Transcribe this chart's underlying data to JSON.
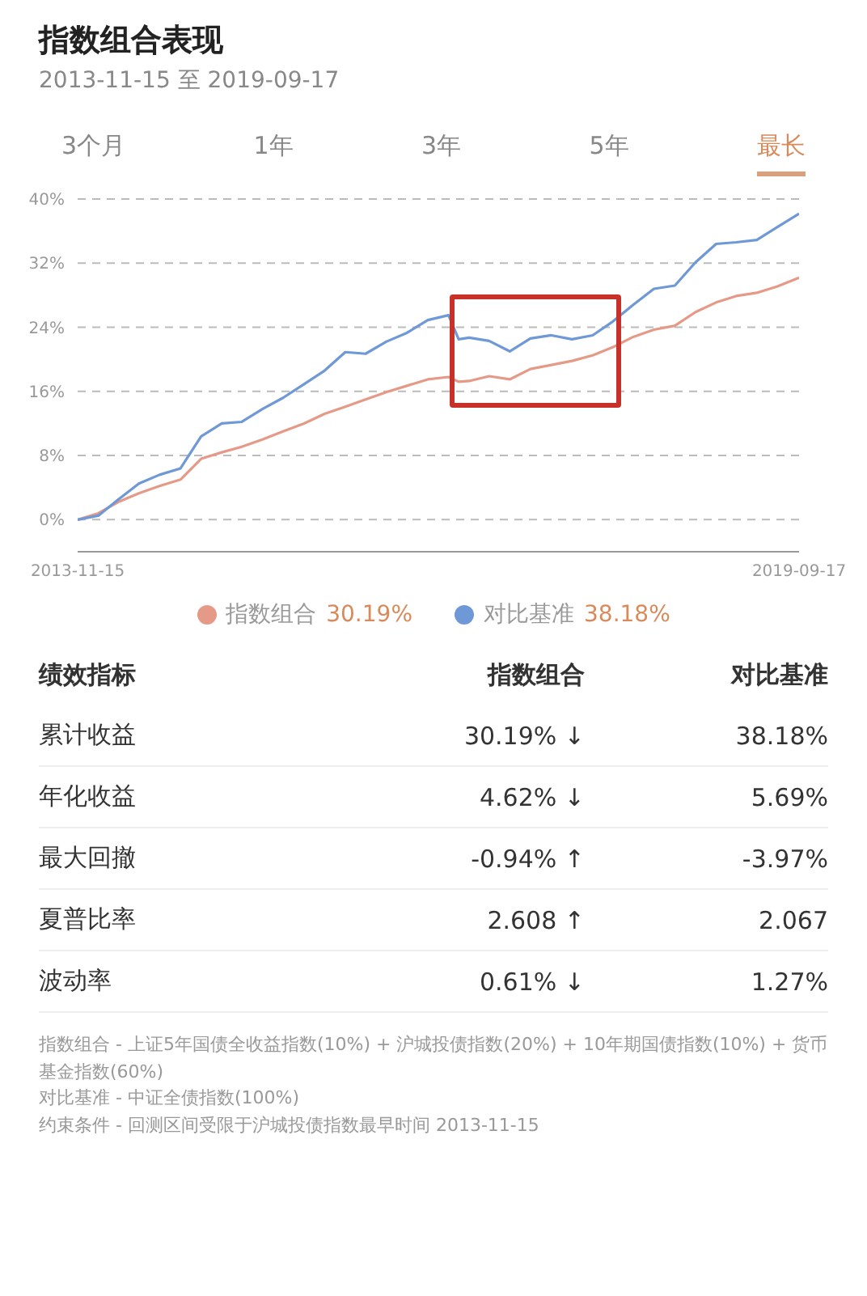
{
  "chart_data": {
    "type": "line",
    "title": "指数组合表现",
    "subtitle": "2013-11-15 至 2019-09-17",
    "x": [
      "2013-11-15",
      "2014-01-15",
      "2014-03-15",
      "2014-05-15",
      "2014-07-15",
      "2014-09-15",
      "2014-11-15",
      "2015-01-15",
      "2015-03-15",
      "2015-05-15",
      "2015-07-15",
      "2015-09-15",
      "2015-11-15",
      "2016-01-15",
      "2016-03-15",
      "2016-05-15",
      "2016-07-15",
      "2016-09-15",
      "2016-11-15",
      "2016-12-15",
      "2017-01-15",
      "2017-03-15",
      "2017-05-15",
      "2017-07-15",
      "2017-09-15",
      "2017-11-15",
      "2018-01-15",
      "2018-03-15",
      "2018-05-15",
      "2018-07-15",
      "2018-09-15",
      "2018-11-15",
      "2019-01-15",
      "2019-03-15",
      "2019-05-15",
      "2019-07-15",
      "2019-09-17"
    ],
    "series": [
      {
        "name": "指数组合",
        "color": "#e59a88",
        "values": [
          0,
          0.8,
          2.2,
          3.3,
          4.2,
          5.0,
          7.6,
          8.4,
          9.1,
          10.0,
          11.0,
          12.0,
          13.2,
          14.1,
          15.0,
          15.9,
          16.7,
          17.5,
          17.8,
          17.2,
          17.3,
          17.9,
          17.5,
          18.8,
          19.3,
          19.8,
          20.5,
          21.5,
          22.8,
          23.7,
          24.2,
          25.9,
          27.1,
          27.9,
          28.3,
          29.1,
          30.19
        ]
      },
      {
        "name": "对比基准",
        "color": "#6e98d6",
        "values": [
          0,
          0.5,
          2.5,
          4.5,
          5.6,
          6.4,
          10.4,
          12.0,
          12.2,
          13.8,
          15.2,
          16.9,
          18.6,
          20.9,
          20.7,
          22.2,
          23.3,
          24.9,
          25.5,
          22.5,
          22.7,
          22.3,
          21.0,
          22.6,
          23.0,
          22.5,
          23.0,
          24.7,
          26.8,
          28.8,
          29.2,
          32.1,
          34.4,
          34.6,
          34.9,
          36.5,
          38.18
        ]
      }
    ],
    "xlim": [
      "2013-11-15",
      "2019-09-17"
    ],
    "xticks": [
      "2013-11-15",
      "2019-09-17"
    ],
    "ylim": [
      -4,
      40
    ],
    "yticks": [
      {
        "value": 0,
        "label": "0%"
      },
      {
        "value": 8,
        "label": "8%"
      },
      {
        "value": 16,
        "label": "16%"
      },
      {
        "value": 24,
        "label": "24%"
      },
      {
        "value": 32,
        "label": "32%"
      },
      {
        "value": 40,
        "label": "40%"
      }
    ],
    "grid": "y",
    "line_style": "solid",
    "legend": "bottom",
    "annotations": [
      "3个月",
      "1年",
      "3年",
      "5年",
      "最长",
      "30.19%",
      "38.18%",
      "绩效指标",
      "指数组合",
      "对比基准",
      "累计收益",
      "30.19% ↓",
      "38.18%",
      "年化收益",
      "4.62% ↓",
      "5.69%",
      "最大回撤",
      "-0.94% ↑",
      "-3.97%",
      "夏普比率",
      "2.608 ↑",
      "2.067",
      "波动率",
      "0.61% ↓",
      "1.27%",
      "指数组合 - 上证5年国债全收益指数(10%) + 沪城投债指数(20%) + 10年期国债指数(10%) + 货币基金指数(60%)",
      "对比基准 - 中证全债指数(100%)",
      "约束条件 - 回测区间受限于沪城投债指数最早时间 2013-11-15"
    ]
  }
}
